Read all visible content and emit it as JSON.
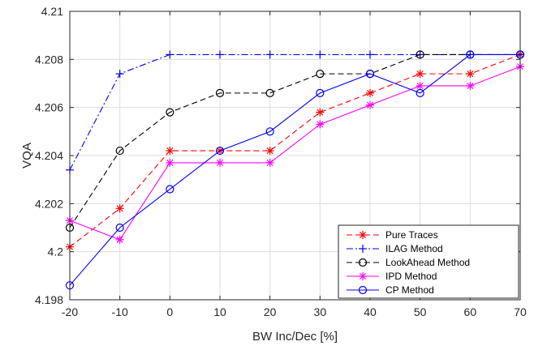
{
  "chart_data": {
    "type": "line",
    "xlabel": "BW Inc/Dec [%]",
    "ylabel": "VQA",
    "xlim": [
      -20,
      70
    ],
    "ylim": [
      4.198,
      4.21
    ],
    "x_ticks": [
      -20,
      -10,
      0,
      10,
      20,
      30,
      40,
      50,
      60,
      70
    ],
    "x_tick_labels": [
      "-20",
      "-10",
      "0",
      "10",
      "20",
      "30",
      "40",
      "50",
      "60",
      "70"
    ],
    "y_ticks": [
      4.198,
      4.2,
      4.202,
      4.204,
      4.206,
      4.208,
      4.21
    ],
    "y_tick_labels": [
      "4.198",
      "4.2",
      "4.202",
      "4.204",
      "4.206",
      "4.208",
      "4.21"
    ],
    "grid": true,
    "legend_position": "bottom-right",
    "x": [
      -20,
      -10,
      0,
      10,
      20,
      30,
      40,
      50,
      60,
      70
    ],
    "series": [
      {
        "name": "Pure Traces",
        "color": "#ff0000",
        "line": "dashed",
        "marker": "asterisk",
        "values": [
          4.2002,
          4.2018,
          4.2042,
          4.2042,
          4.2042,
          4.2058,
          4.2066,
          4.2074,
          4.2074,
          4.2082
        ]
      },
      {
        "name": "ILAG Method",
        "color": "#0000ff",
        "line": "dashdot",
        "marker": "plus",
        "values": [
          4.2034,
          4.2074,
          4.2082,
          4.2082,
          4.2082,
          4.2082,
          4.2082,
          4.2082,
          4.2082,
          4.2082
        ]
      },
      {
        "name": "LookAhead Method",
        "color": "#000000",
        "line": "dashed",
        "marker": "circle",
        "values": [
          4.201,
          4.2042,
          4.2058,
          4.2066,
          4.2066,
          4.2074,
          4.2074,
          4.2082,
          4.2082,
          4.2082
        ]
      },
      {
        "name": "IPD Method",
        "color": "#ff00ff",
        "line": "solid",
        "marker": "asterisk",
        "values": [
          4.2013,
          4.2005,
          4.2037,
          4.2037,
          4.2037,
          4.2053,
          4.2061,
          4.2069,
          4.2069,
          4.2077
        ]
      },
      {
        "name": "CP Method",
        "color": "#0000ff",
        "line": "solid",
        "marker": "circle",
        "values": [
          4.1986,
          4.201,
          4.2026,
          4.2042,
          4.205,
          4.2066,
          4.2074,
          4.2066,
          4.2082,
          4.2082
        ]
      }
    ]
  }
}
